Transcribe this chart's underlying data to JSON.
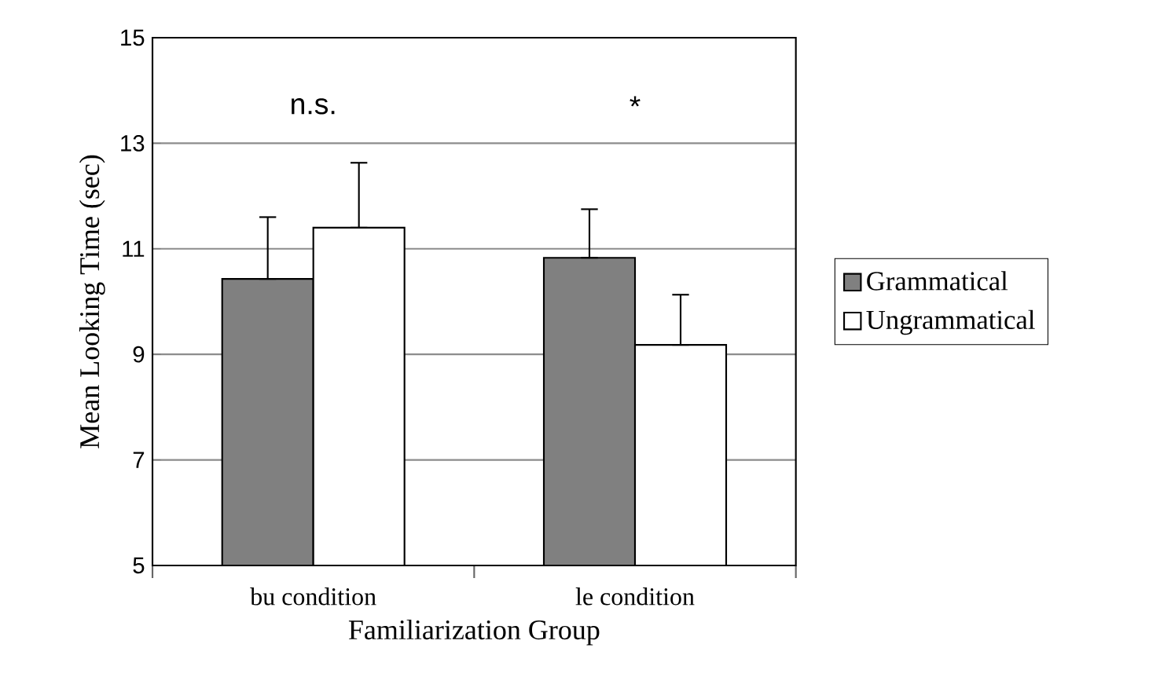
{
  "chart_data": {
    "type": "bar",
    "xlabel": "Familiarization Group",
    "ylabel": "Mean Looking Time (sec)",
    "categories": [
      "bu condition",
      "le condition"
    ],
    "series": [
      {
        "name": "Grammatical",
        "color": "#808080",
        "values": [
          10.43,
          10.83
        ],
        "errors": [
          [
            10.43,
            11.6
          ],
          [
            10.83,
            11.75
          ]
        ]
      },
      {
        "name": "Ungrammatical",
        "color": "#ffffff",
        "values": [
          11.4,
          9.18
        ],
        "errors": [
          [
            11.4,
            12.63
          ],
          [
            9.18,
            10.13
          ]
        ]
      }
    ],
    "ylim": [
      5,
      15
    ],
    "yticks": [
      5,
      7,
      9,
      11,
      13,
      15
    ],
    "grid": "y",
    "legend": "right",
    "annotations": [
      "n.s.",
      "*"
    ]
  }
}
